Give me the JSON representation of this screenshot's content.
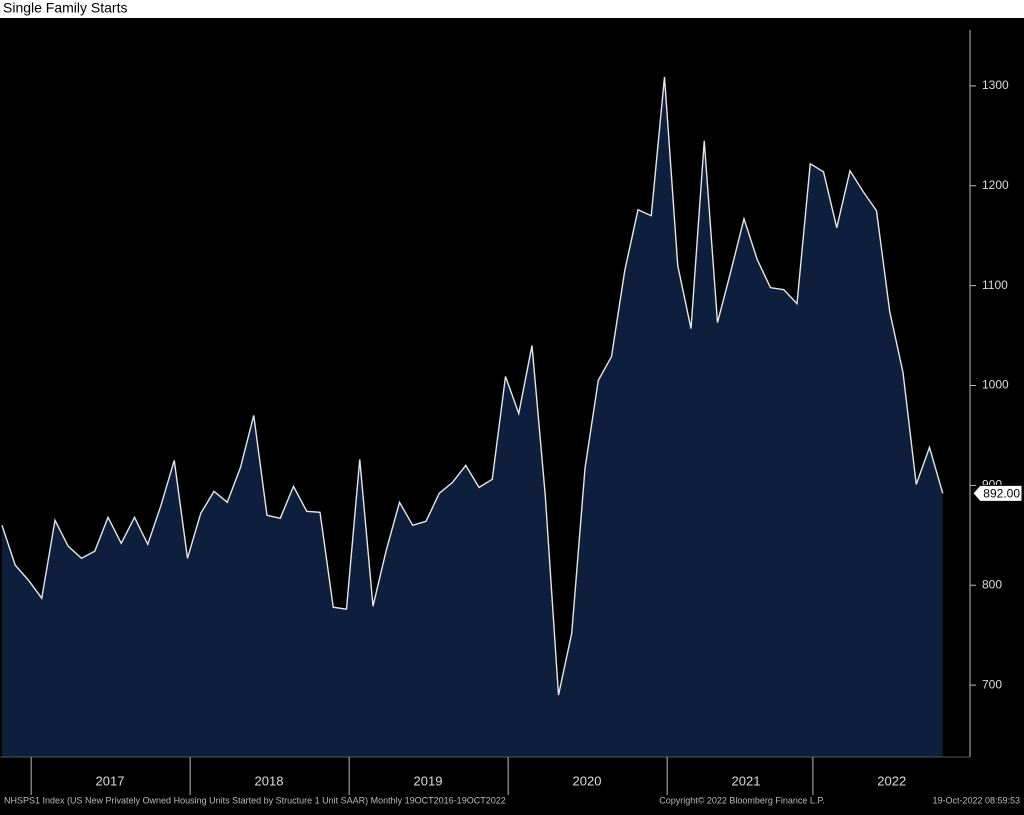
{
  "chart_data": {
    "type": "area",
    "title": "Single Family Starts",
    "footer_left": "NHSPS1 Index (US New Privately Owned Housing Units Started by Structure 1 Unit SAAR)  Monthly 19OCT2016-19OCT2022",
    "footer_center": "Copyright© 2022 Bloomberg Finance L.P.",
    "footer_right": "19-Oct-2022 08:59:53",
    "categories": [
      null,
      null,
      null,
      null,
      null,
      null,
      null,
      null,
      "2017",
      null,
      null,
      null,
      null,
      null,
      null,
      null,
      null,
      null,
      null,
      null,
      "2018",
      null,
      null,
      null,
      null,
      null,
      null,
      null,
      null,
      null,
      null,
      null,
      "2019",
      null,
      null,
      null,
      null,
      null,
      null,
      null,
      null,
      null,
      null,
      null,
      "2020",
      null,
      null,
      null,
      null,
      null,
      null,
      null,
      null,
      null,
      null,
      null,
      "2021",
      null,
      null,
      null,
      null,
      null,
      null,
      null,
      null,
      null,
      null,
      "2022",
      null,
      null,
      null,
      null
    ],
    "values": [
      860,
      820,
      805,
      787,
      865,
      839,
      827,
      834,
      868,
      842,
      868,
      841,
      880,
      925,
      827,
      872,
      894,
      883,
      918,
      970,
      870,
      867,
      899,
      874,
      873,
      778,
      776,
      926,
      779,
      835,
      883,
      860,
      864,
      892,
      903,
      920,
      898,
      906,
      1009,
      972,
      1040,
      890,
      690,
      752,
      917,
      1005,
      1029,
      1115,
      1176,
      1170,
      1309,
      1120,
      1057,
      1245,
      1063,
      1114,
      1167,
      1126,
      1098,
      1096,
      1082,
      1222,
      1214,
      1158,
      1215,
      1194,
      1175,
      1074,
      1013,
      901,
      938,
      892
    ],
    "value_labels": [
      null,
      null,
      null,
      null,
      null,
      null,
      null,
      null,
      null,
      null,
      null,
      null,
      null,
      null,
      null,
      null,
      null,
      null,
      null,
      null,
      null,
      null,
      null,
      null,
      null,
      null,
      null,
      null,
      null,
      null,
      null,
      null,
      null,
      null,
      null,
      null,
      null,
      null,
      null,
      null,
      null,
      null,
      null,
      null,
      null,
      null,
      null,
      null,
      null,
      null,
      null,
      null,
      null,
      null,
      null,
      null,
      null,
      null,
      null,
      null,
      null,
      null,
      null,
      null,
      null,
      null,
      null,
      null,
      null,
      null,
      null,
      "892.00"
    ],
    "color": "#0d1f3c",
    "line_color": "#e6e6e6",
    "ylim": [
      628,
      1368
    ],
    "yticks": [
      700,
      800,
      900,
      1000,
      1100,
      1200,
      1300
    ],
    "y_axis_side": "right"
  }
}
